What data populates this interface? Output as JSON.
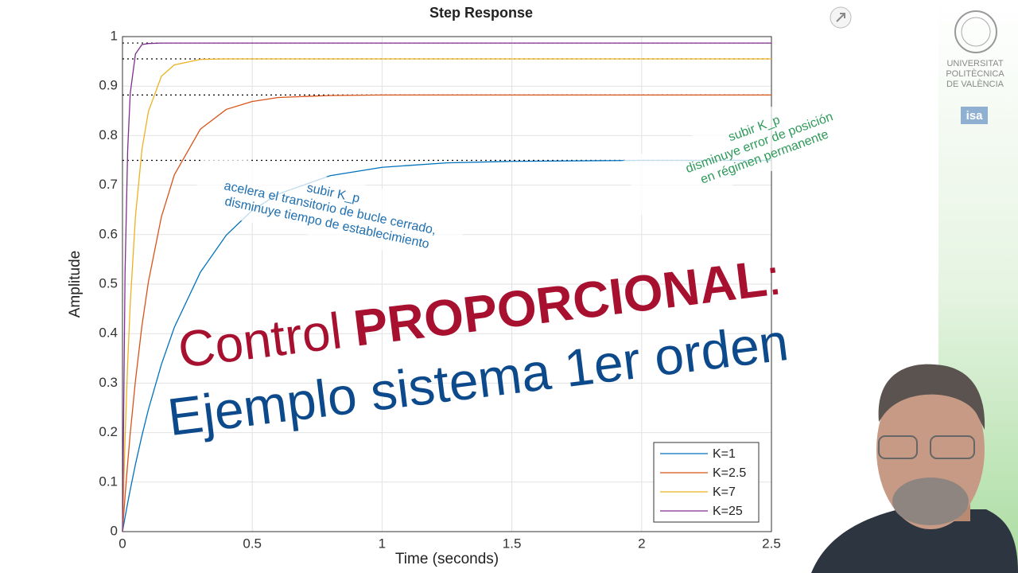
{
  "chart_data": {
    "type": "line",
    "title": "Step Response",
    "x_label": "Time (seconds)",
    "y_label": "Amplitude",
    "x": [
      0,
      0.01,
      0.02,
      0.03,
      0.05,
      0.075,
      0.1,
      0.15,
      0.2,
      0.3,
      0.4,
      0.5,
      0.6,
      0.8,
      1.0,
      1.25,
      1.5,
      2,
      2.5
    ],
    "series": [
      {
        "name": "K=1",
        "color": "#0072BD",
        "values": [
          0,
          0.0294,
          0.0577,
          0.0848,
          0.136,
          0.194,
          0.247,
          0.338,
          0.413,
          0.524,
          0.599,
          0.649,
          0.682,
          0.719,
          0.736,
          0.745,
          0.748,
          0.75,
          0.75
        ]
      },
      {
        "name": "K=2.5",
        "color": "#D95319",
        "values": [
          0,
          0.0719,
          0.138,
          0.199,
          0.305,
          0.416,
          0.505,
          0.636,
          0.721,
          0.813,
          0.853,
          0.869,
          0.877,
          0.881,
          0.882,
          0.882,
          0.882,
          0.882,
          0.882
        ]
      },
      {
        "name": "K=7",
        "color": "#EDB120",
        "values": [
          0,
          0.189,
          0.34,
          0.461,
          0.637,
          0.772,
          0.849,
          0.92,
          0.943,
          0.954,
          0.955,
          0.955,
          0.955,
          0.955,
          0.955,
          0.955,
          0.955,
          0.955,
          0.955
        ]
      },
      {
        "name": "K=25",
        "color": "#7E2F8E",
        "values": [
          0,
          0.525,
          0.771,
          0.886,
          0.965,
          0.984,
          0.986,
          0.987,
          0.987,
          0.987,
          0.987,
          0.987,
          0.987,
          0.987,
          0.987,
          0.987,
          0.987,
          0.987,
          0.987
        ]
      }
    ],
    "xlim": [
      0,
      2.5
    ],
    "xticks": [
      0,
      0.5,
      1,
      1.5,
      2,
      2.5
    ],
    "ylim": [
      0,
      1
    ],
    "yticks": [
      0,
      0.1,
      0.2,
      0.3,
      0.4,
      0.5,
      0.6,
      0.7,
      0.8,
      0.9,
      1
    ],
    "grid": true,
    "legend": "lower-right",
    "annotations": [
      {
        "lines": [
          "subir K_p",
          "acelera el transitorio de bucle cerrado,",
          "disminuye tiempo de establecimiento"
        ],
        "color": "#1f6fb0"
      },
      {
        "lines": [
          "subir K_p",
          "disminuye error de posición",
          "en régimen permanente"
        ],
        "color": "#2e9a5a"
      }
    ]
  },
  "overlay": {
    "line1": [
      "Control",
      "PROPORCIONAL",
      ":"
    ],
    "line2": "Ejemplo sistema 1er orden"
  },
  "branding": {
    "university": [
      "UNIVERSITAT",
      "POLITÈCNICA",
      "DE VALÈNCIA"
    ],
    "dept": "isa"
  }
}
